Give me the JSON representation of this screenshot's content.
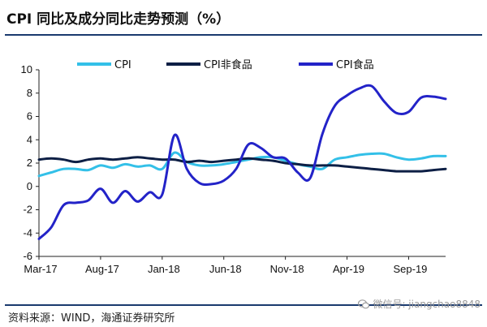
{
  "title": "CPI 同比及成分同比走势预测（%）",
  "source": "资料来源：WIND，海通证券研究所",
  "watermark": "微信号: jiangchao8848",
  "chart_data": {
    "type": "line",
    "x_tick_labels": [
      "Mar-17",
      "Aug-17",
      "Jan-18",
      "Jun-18",
      "Nov-18",
      "Apr-19",
      "Sep-19"
    ],
    "y_ticks": [
      -6,
      -4,
      -2,
      0,
      2,
      4,
      6,
      8,
      10
    ],
    "ylim": [
      -6,
      10
    ],
    "xlim": [
      0,
      33
    ],
    "grid": false,
    "legend_position": "top",
    "series": [
      {
        "name": "CPI",
        "color": "#33c0e8",
        "width": 3,
        "x": [
          0,
          1,
          2,
          3,
          4,
          5,
          6,
          7,
          8,
          9,
          10,
          11,
          12,
          13,
          14,
          15,
          16,
          17,
          18,
          19,
          20,
          21,
          22,
          23,
          24,
          25,
          26,
          27,
          28,
          29,
          30,
          31,
          32,
          33
        ],
        "y": [
          0.9,
          1.2,
          1.5,
          1.5,
          1.4,
          1.8,
          1.6,
          1.9,
          1.7,
          1.8,
          1.5,
          2.9,
          2.1,
          1.8,
          1.8,
          1.9,
          2.1,
          2.3,
          2.5,
          2.5,
          2.2,
          1.9,
          1.7,
          1.5,
          2.3,
          2.5,
          2.7,
          2.8,
          2.8,
          2.5,
          2.3,
          2.4,
          2.6,
          2.6
        ]
      },
      {
        "name": "CPI非食品",
        "color": "#0d1f45",
        "width": 3,
        "x": [
          0,
          1,
          2,
          3,
          4,
          5,
          6,
          7,
          8,
          9,
          10,
          11,
          12,
          13,
          14,
          15,
          16,
          17,
          18,
          19,
          20,
          21,
          22,
          23,
          24,
          25,
          26,
          27,
          28,
          29,
          30,
          31,
          32,
          33
        ],
        "y": [
          2.3,
          2.4,
          2.3,
          2.1,
          2.3,
          2.4,
          2.3,
          2.4,
          2.5,
          2.4,
          2.3,
          2.3,
          2.1,
          2.2,
          2.1,
          2.2,
          2.3,
          2.4,
          2.3,
          2.2,
          2.0,
          1.9,
          1.8,
          1.8,
          1.8,
          1.7,
          1.6,
          1.5,
          1.4,
          1.3,
          1.3,
          1.3,
          1.4,
          1.5
        ]
      },
      {
        "name": "CPI食品",
        "color": "#2323c8",
        "width": 3,
        "x": [
          0,
          1,
          2,
          3,
          4,
          5,
          6,
          7,
          8,
          9,
          10,
          11,
          12,
          13,
          14,
          15,
          16,
          17,
          18,
          19,
          20,
          21,
          22,
          23,
          24,
          25,
          26,
          27,
          28,
          29,
          30,
          31,
          32,
          33
        ],
        "y": [
          -4.5,
          -3.5,
          -1.6,
          -1.4,
          -1.2,
          -0.2,
          -1.4,
          -0.4,
          -1.3,
          -0.5,
          -0.7,
          4.4,
          1.5,
          0.3,
          0.2,
          0.5,
          1.5,
          3.6,
          3.3,
          2.5,
          2.4,
          1.2,
          0.7,
          4.5,
          6.9,
          7.8,
          8.4,
          8.6,
          7.3,
          6.3,
          6.4,
          7.6,
          7.7,
          7.5
        ]
      }
    ]
  }
}
